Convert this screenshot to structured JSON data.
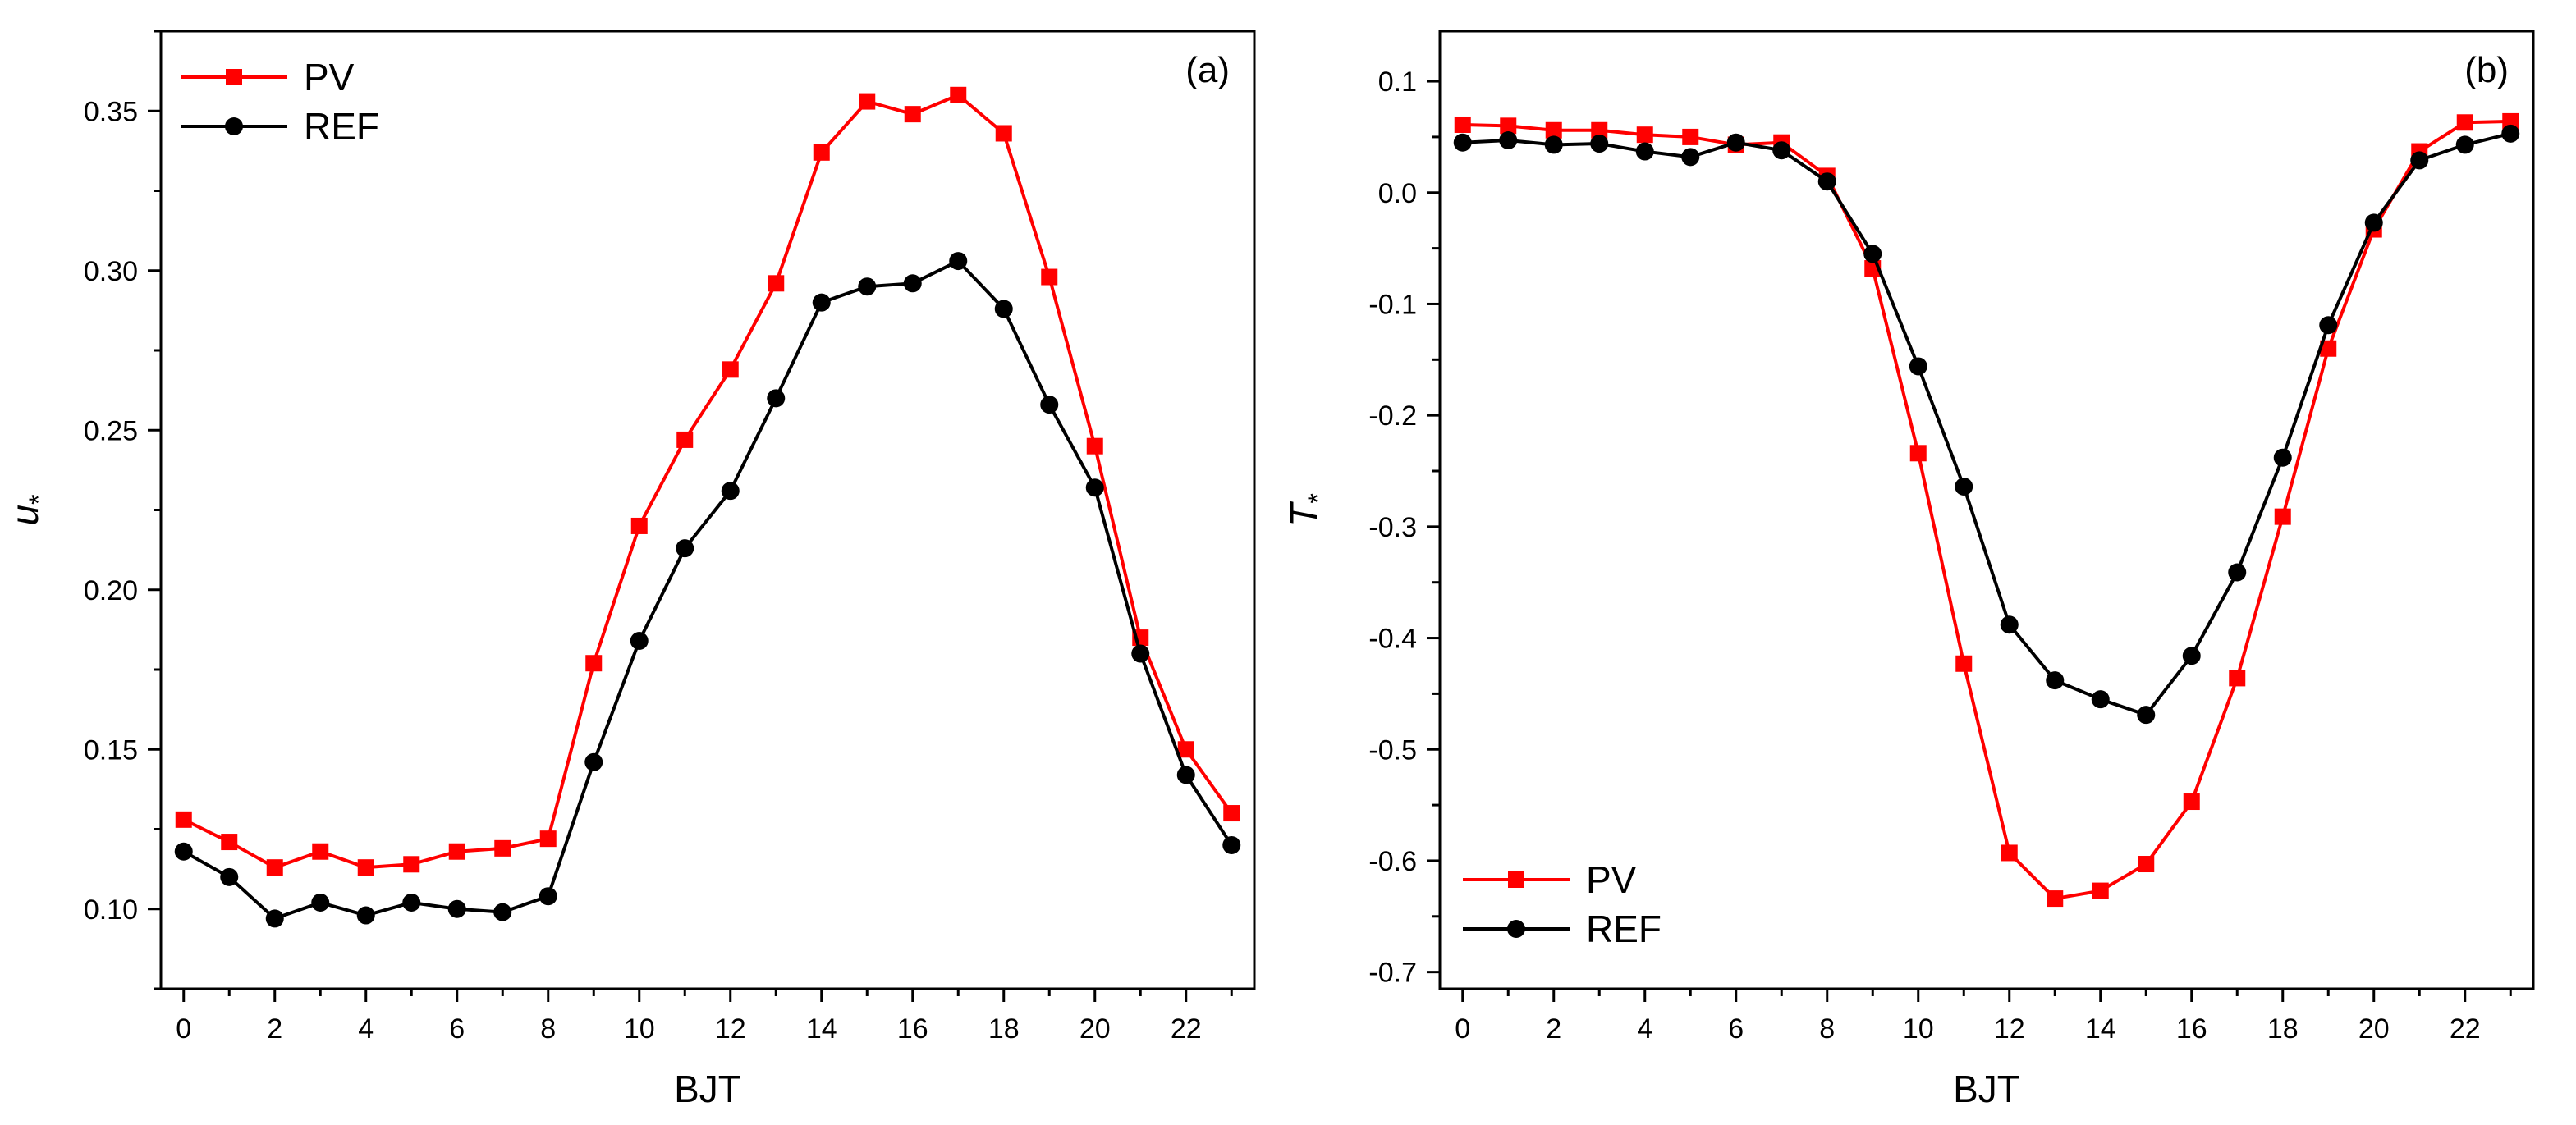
{
  "colors": {
    "pv": "#ff0000",
    "ref": "#000000",
    "axis": "#000000",
    "background": "#ffffff"
  },
  "chart_data": [
    {
      "type": "line",
      "panel_label": "(a)",
      "xlabel": "BJT",
      "ylabel_symbol": "u",
      "ylabel_subscript": "*",
      "xlim": [
        -0.5,
        23.5
      ],
      "ylim": [
        0.075,
        0.375
      ],
      "xticks": [
        0,
        2,
        4,
        6,
        8,
        10,
        12,
        14,
        16,
        18,
        20,
        22
      ],
      "xtick_labels": [
        "0",
        "2",
        "4",
        "6",
        "8",
        "10",
        "12",
        "14",
        "16",
        "18",
        "20",
        "22"
      ],
      "yticks": [
        0.1,
        0.15,
        0.2,
        0.25,
        0.3,
        0.35
      ],
      "ytick_labels": [
        "0.10",
        "0.15",
        "0.20",
        "0.25",
        "0.30",
        "0.35"
      ],
      "legend_position": "top-left",
      "x": [
        0,
        1,
        2,
        3,
        4,
        5,
        6,
        7,
        8,
        9,
        10,
        11,
        12,
        13,
        14,
        15,
        16,
        17,
        18,
        19,
        20,
        21,
        22,
        23
      ],
      "series": [
        {
          "name": "PV",
          "marker": "square",
          "color": "#ff0000",
          "values": [
            0.128,
            0.121,
            0.113,
            0.118,
            0.113,
            0.114,
            0.118,
            0.119,
            0.122,
            0.177,
            0.22,
            0.247,
            0.269,
            0.296,
            0.337,
            0.353,
            0.349,
            0.355,
            0.343,
            0.298,
            0.245,
            0.185,
            0.15,
            0.13
          ]
        },
        {
          "name": "REF",
          "marker": "circle",
          "color": "#000000",
          "values": [
            0.118,
            0.11,
            0.097,
            0.102,
            0.098,
            0.102,
            0.1,
            0.099,
            0.104,
            0.146,
            0.184,
            0.213,
            0.231,
            0.26,
            0.29,
            0.295,
            0.296,
            0.303,
            0.288,
            0.258,
            0.232,
            0.18,
            0.142,
            0.12
          ]
        }
      ]
    },
    {
      "type": "line",
      "panel_label": "(b)",
      "xlabel": "BJT",
      "ylabel_symbol": "T",
      "ylabel_subscript": "*",
      "xlim": [
        -0.5,
        23.5
      ],
      "ylim": [
        -0.715,
        0.145
      ],
      "xticks": [
        0,
        2,
        4,
        6,
        8,
        10,
        12,
        14,
        16,
        18,
        20,
        22
      ],
      "xtick_labels": [
        "0",
        "2",
        "4",
        "6",
        "8",
        "10",
        "12",
        "14",
        "16",
        "18",
        "20",
        "22"
      ],
      "yticks": [
        -0.7,
        -0.6,
        -0.5,
        -0.4,
        -0.3,
        -0.2,
        -0.1,
        0.0,
        0.1
      ],
      "ytick_labels": [
        "-0.7",
        "-0.6",
        "-0.5",
        "-0.4",
        "-0.3",
        "-0.2",
        "-0.1",
        "0.0",
        "0.1"
      ],
      "legend_position": "bottom-left",
      "x": [
        0,
        1,
        2,
        3,
        4,
        5,
        6,
        7,
        8,
        9,
        10,
        11,
        12,
        13,
        14,
        15,
        16,
        17,
        18,
        19,
        20,
        21,
        22,
        23
      ],
      "series": [
        {
          "name": "PV",
          "marker": "square",
          "color": "#ff0000",
          "values": [
            0.061,
            0.06,
            0.056,
            0.056,
            0.052,
            0.05,
            0.043,
            0.045,
            0.015,
            -0.068,
            -0.234,
            -0.423,
            -0.593,
            -0.634,
            -0.627,
            -0.603,
            -0.547,
            -0.436,
            -0.291,
            -0.14,
            -0.033,
            0.037,
            0.063,
            0.064
          ]
        },
        {
          "name": "REF",
          "marker": "circle",
          "color": "#000000",
          "values": [
            0.045,
            0.047,
            0.043,
            0.044,
            0.037,
            0.032,
            0.045,
            0.038,
            0.01,
            -0.055,
            -0.156,
            -0.264,
            -0.388,
            -0.438,
            -0.455,
            -0.469,
            -0.416,
            -0.341,
            -0.238,
            -0.119,
            -0.027,
            0.029,
            0.043,
            0.053
          ]
        }
      ]
    }
  ]
}
